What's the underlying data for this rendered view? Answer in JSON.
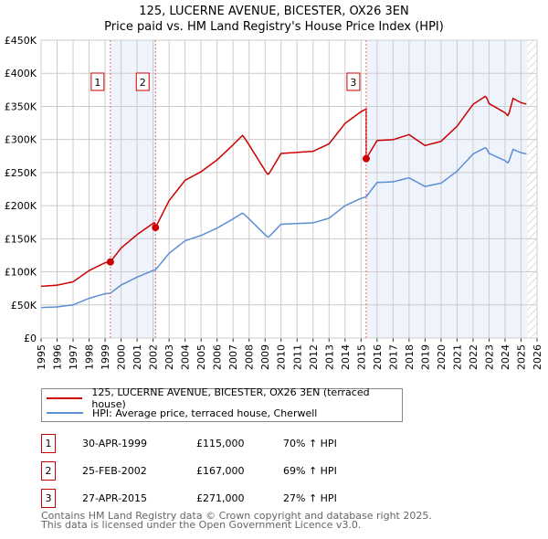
{
  "title": "125, LUCERNE AVENUE, BICESTER, OX26 3EN",
  "subtitle": "Price paid vs. HM Land Registry's House Price Index (HPI)",
  "colors": {
    "property": "#cc0000",
    "hpi": "#5b8fd4",
    "shade": "#eef3fc"
  },
  "chart_data": {
    "type": "line",
    "xlim": [
      1995,
      2026
    ],
    "ylim": [
      0,
      450000
    ],
    "yticks": [
      0,
      50000,
      100000,
      150000,
      200000,
      250000,
      300000,
      350000,
      400000,
      450000
    ],
    "ytick_labels": [
      "£0",
      "£50K",
      "£100K",
      "£150K",
      "£200K",
      "£250K",
      "£300K",
      "£350K",
      "£400K",
      "£450K"
    ],
    "xticks": [
      "1995",
      "1996",
      "1997",
      "1998",
      "1999",
      "2000",
      "2001",
      "2002",
      "2003",
      "2004",
      "2005",
      "2006",
      "2007",
      "2008",
      "2009",
      "2010",
      "2011",
      "2012",
      "2013",
      "2014",
      "2015",
      "2016",
      "2017",
      "2018",
      "2019",
      "2020",
      "2021",
      "2022",
      "2023",
      "2024",
      "2025",
      "2026"
    ],
    "hpi_series": {
      "name": "HPI: Average price, terraced house, Cherwell",
      "x": [
        1995,
        1996,
        1997,
        1998,
        1999,
        1999.33,
        2000,
        2001,
        2002,
        2002.15,
        2003,
        2004,
        2005,
        2006,
        2007,
        2007.6,
        2008,
        2009,
        2009.2,
        2010,
        2011,
        2012,
        2013,
        2014,
        2015,
        2015.32,
        2016,
        2017,
        2018,
        2019,
        2020,
        2021,
        2022,
        2022.8,
        2023,
        2024,
        2024.2,
        2024.5,
        2025,
        2025.4
      ],
      "y": [
        46000,
        47000,
        50000,
        60000,
        67000,
        67700,
        80000,
        92000,
        102000,
        103000,
        128000,
        147000,
        155000,
        166000,
        180000,
        189000,
        180000,
        156000,
        152000,
        172000,
        173000,
        174000,
        181000,
        200000,
        211000,
        213400,
        235000,
        236000,
        242000,
        229000,
        234000,
        252000,
        278000,
        288000,
        279000,
        268000,
        264000,
        285000,
        280000,
        278000
      ]
    },
    "property_series": {
      "name": "125, LUCERNE AVENUE, BICESTER, OX26 3EN (terraced house)"
    },
    "sales": [
      {
        "id": "1",
        "x": 1999.33,
        "date": "30-APR-1999",
        "price": 115000,
        "price_label": "£115,000",
        "hpi_delta": "70% ↑ HPI"
      },
      {
        "id": "2",
        "x": 2002.15,
        "date": "25-FEB-2002",
        "price": 167000,
        "price_label": "£167,000",
        "hpi_delta": "69% ↑ HPI"
      },
      {
        "id": "3",
        "x": 2015.32,
        "date": "27-APR-2015",
        "price": 271000,
        "price_label": "£271,000",
        "hpi_delta": "27% ↑ HPI"
      }
    ],
    "forecast_start": 2025.4
  },
  "footer": [
    "Contains HM Land Registry data © Crown copyright and database right 2025.",
    "This data is licensed under the Open Government Licence v3.0."
  ]
}
